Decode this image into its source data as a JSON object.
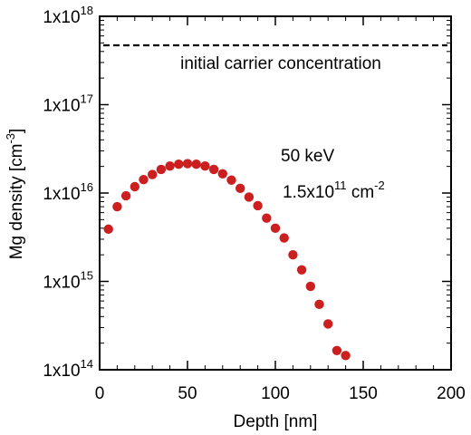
{
  "chart_data": {
    "type": "scatter",
    "xlabel": "Depth [nm]",
    "ylabel": "Mg density [cm",
    "ylabel_sup": "-3",
    "ylabel_tail": "]",
    "xlim": [
      0,
      200
    ],
    "ylim": [
      100000000000000.0,
      1e+18
    ],
    "yscale": "log",
    "grid": false,
    "x_ticks": [
      {
        "value": 0,
        "label": "0"
      },
      {
        "value": 50,
        "label": "50"
      },
      {
        "value": 100,
        "label": "100"
      },
      {
        "value": 150,
        "label": "150"
      },
      {
        "value": 200,
        "label": "200"
      }
    ],
    "y_ticks": [
      {
        "value": 100000000000000.0,
        "base": "1x10",
        "exp": "14"
      },
      {
        "value": 1000000000000000.0,
        "base": "1x10",
        "exp": "15"
      },
      {
        "value": 1e+16,
        "base": "1x10",
        "exp": "16"
      },
      {
        "value": 1e+17,
        "base": "1x10",
        "exp": "17"
      },
      {
        "value": 1e+18,
        "base": "1x10",
        "exp": "18"
      }
    ],
    "reference_line": {
      "y": 4.7e+17,
      "label": "initial carrier concentration",
      "style": "dashed",
      "color": "#000000"
    },
    "annotations": {
      "energy": "50 keV",
      "dose_base": "1.5x10",
      "dose_exp": "11",
      "dose_unit": " cm",
      "dose_unit_exp": "-2"
    },
    "series": [
      {
        "color": "#cc1f1f",
        "points": [
          {
            "x": 5,
            "y": 3900000000000000.0
          },
          {
            "x": 10,
            "y": 7000000000000000.0
          },
          {
            "x": 15,
            "y": 9300000000000000.0
          },
          {
            "x": 20,
            "y": 1.18e+16
          },
          {
            "x": 25,
            "y": 1.42e+16
          },
          {
            "x": 30,
            "y": 1.62e+16
          },
          {
            "x": 35,
            "y": 1.85e+16
          },
          {
            "x": 40,
            "y": 2.02e+16
          },
          {
            "x": 45,
            "y": 2.12e+16
          },
          {
            "x": 50,
            "y": 2.15e+16
          },
          {
            "x": 55,
            "y": 2.12e+16
          },
          {
            "x": 60,
            "y": 2.02e+16
          },
          {
            "x": 65,
            "y": 1.85e+16
          },
          {
            "x": 70,
            "y": 1.65e+16
          },
          {
            "x": 75,
            "y": 1.4e+16
          },
          {
            "x": 80,
            "y": 1.13e+16
          },
          {
            "x": 85,
            "y": 9000000000000000.0
          },
          {
            "x": 90,
            "y": 7200000000000000.0
          },
          {
            "x": 95,
            "y": 5200000000000000.0
          },
          {
            "x": 100,
            "y": 4000000000000000.0
          },
          {
            "x": 105,
            "y": 3100000000000000.0
          },
          {
            "x": 110,
            "y": 2000000000000000.0
          },
          {
            "x": 115,
            "y": 1350000000000000.0
          },
          {
            "x": 120,
            "y": 880000000000000.0
          },
          {
            "x": 125,
            "y": 550000000000000.0
          },
          {
            "x": 130,
            "y": 330000000000000.0
          },
          {
            "x": 135,
            "y": 165000000000000.0
          },
          {
            "x": 140,
            "y": 145000000000000.0
          }
        ]
      }
    ]
  }
}
